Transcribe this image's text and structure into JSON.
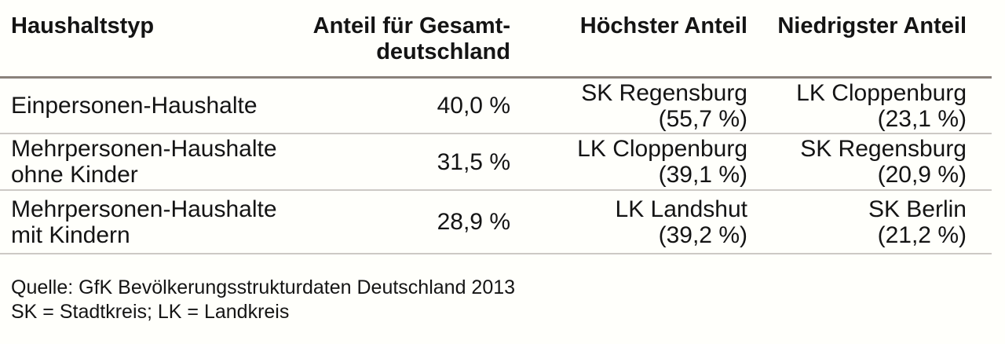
{
  "chart_data": {
    "type": "table",
    "columns": [
      "Haushaltstyp",
      "Anteil für Gesamt-\ndeutschland",
      "Höchster Anteil",
      "Niedrigster Anteil"
    ],
    "rows": [
      [
        "Einpersonen-Haushalte",
        "40,0 %",
        "SK Regensburg\n(55,7 %)",
        "LK Cloppenburg\n(23,1 %)"
      ],
      [
        "Mehrpersonen-Haushalte\nohne Kinder",
        "31,5 %",
        "LK Cloppenburg\n(39,1 %)",
        "SK Regensburg\n(20,9 %)"
      ],
      [
        "Mehrpersonen-Haushalte\nmit Kindern",
        "28,9 %",
        "LK Landshut\n(39,2 %)",
        "SK Berlin\n(21,2 %)"
      ]
    ],
    "values_numeric": {
      "anteil_gesamtdeutschland_pct": [
        40.0,
        31.5,
        28.9
      ],
      "hoechster_anteil_pct": [
        55.7,
        39.1,
        39.2
      ],
      "niedrigster_anteil_pct": [
        23.1,
        20.9,
        21.2
      ]
    },
    "source": "Quelle: GfK Bevölkerungsstrukturdaten Deutschland 2013",
    "legend": "SK = Stadtkreis; LK = Landkreis"
  },
  "colors": {
    "text": "#141414",
    "header_rule": "#8a827b",
    "row_rule": "#cdc9c5",
    "background": "#fffffb"
  }
}
